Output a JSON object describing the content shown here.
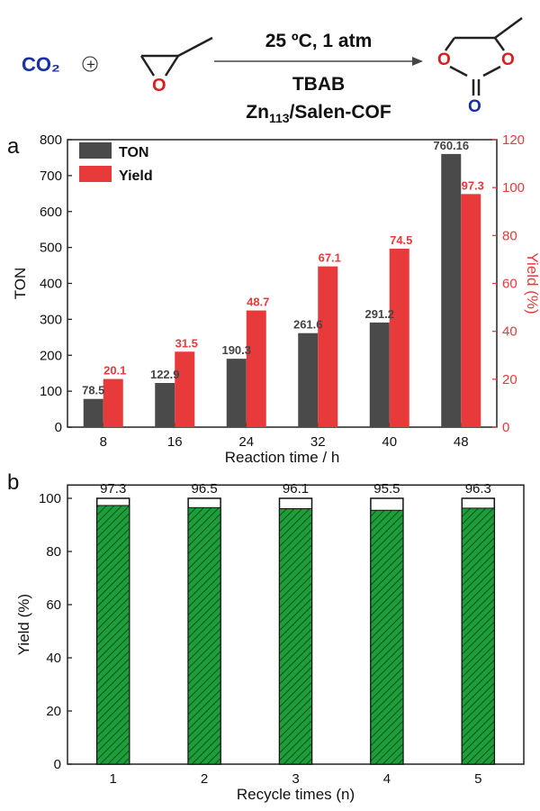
{
  "scheme": {
    "reactant1": "CO₂",
    "plus": "+",
    "conditions": "25 ºC, 1 atm",
    "catalyst1": "TBAB",
    "catalyst2_prefix": "Zn",
    "catalyst2_sub": "113",
    "catalyst2_suffix": "/Salen-COF",
    "epoxide_atom": "O",
    "product_atom1": "O",
    "product_atom2": "O",
    "product_atom3": "O"
  },
  "colors": {
    "ton": "#4a4a4a",
    "yield": "#e8393b",
    "recycle": "#1e9e3a",
    "reagent_blue": "#1a2ea8",
    "atom_red": "#d81e1e",
    "atom_blue": "#1a2ea8"
  },
  "chart_data": [
    {
      "panel": "a",
      "type": "bar",
      "categories": [
        "8",
        "16",
        "24",
        "32",
        "40",
        "48"
      ],
      "series": [
        {
          "name": "TON",
          "axis": "left",
          "values": [
            78.5,
            122.9,
            190.3,
            261.6,
            291.2,
            760.16
          ],
          "labels": [
            "78.5",
            "122.9",
            "190.3",
            "261.6",
            "291.2",
            "760.16"
          ]
        },
        {
          "name": "Yield",
          "axis": "right",
          "values": [
            20.1,
            31.5,
            48.7,
            67.1,
            74.5,
            97.3
          ],
          "labels": [
            "20.1",
            "31.5",
            "48.7",
            "67.1",
            "74.5",
            "97.3"
          ]
        }
      ],
      "xlabel": "Reaction time / h",
      "ylabel": "TON",
      "y2label": "Yield (%)",
      "ylim": [
        0,
        800
      ],
      "y2lim": [
        0,
        120
      ],
      "yticks": [
        "0",
        "100",
        "200",
        "300",
        "400",
        "500",
        "600",
        "700",
        "800"
      ],
      "y2ticks": [
        "0",
        "20",
        "40",
        "60",
        "80",
        "100",
        "120"
      ],
      "legend_position": "top-left",
      "grid": false
    },
    {
      "panel": "b",
      "type": "bar",
      "categories": [
        "1",
        "2",
        "3",
        "4",
        "5"
      ],
      "values": [
        97.3,
        96.5,
        96.1,
        95.5,
        96.3
      ],
      "labels": [
        "97.3",
        "96.5",
        "96.1",
        "95.5",
        "96.3"
      ],
      "outline_top": 100,
      "xlabel": "Recycle times (n)",
      "ylabel": "Yield (%)",
      "ylim": [
        0,
        105
      ],
      "yticks": [
        "0",
        "20",
        "40",
        "60",
        "80",
        "100"
      ],
      "grid": false
    }
  ]
}
